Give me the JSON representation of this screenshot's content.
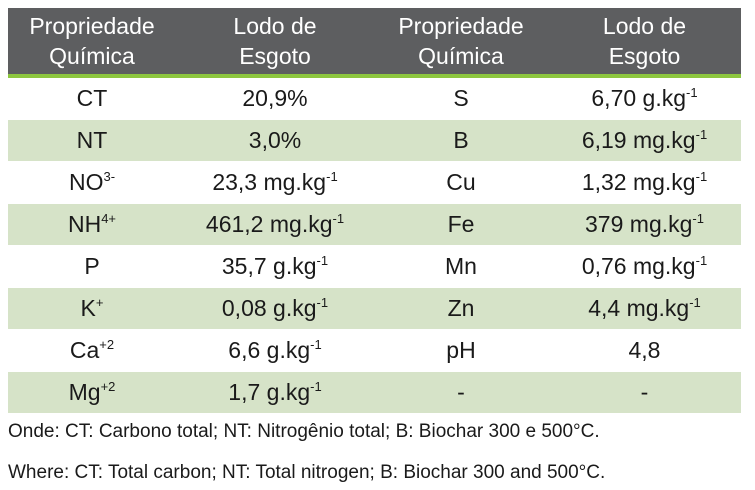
{
  "table": {
    "headers": [
      [
        "Propriedade",
        "Química"
      ],
      [
        "Lodo de",
        "Esgoto"
      ],
      [
        "Propriedade",
        "Química"
      ],
      [
        "Lodo de",
        "Esgoto"
      ]
    ],
    "rows": [
      {
        "p1": "CT",
        "p1_sup": "",
        "v1": "20,9%",
        "v1_sup": "",
        "p2": "S",
        "p2_sup": "",
        "v2": "6,70 g.kg",
        "v2_sup": "-1"
      },
      {
        "p1": "NT",
        "p1_sup": "",
        "v1": "3,0%",
        "v1_sup": "",
        "p2": "B",
        "p2_sup": "",
        "v2": "6,19 mg.kg",
        "v2_sup": "-1"
      },
      {
        "p1": "NO",
        "p1_sup": "3-",
        "v1": "23,3 mg.kg",
        "v1_sup": "-1",
        "p2": "Cu",
        "p2_sup": "",
        "v2": "1,32 mg.kg",
        "v2_sup": "-1"
      },
      {
        "p1": "NH",
        "p1_sup": "4+",
        "v1": "461,2 mg.kg",
        "v1_sup": "-1",
        "p2": "Fe",
        "p2_sup": "",
        "v2": "379 mg.kg",
        "v2_sup": "-1"
      },
      {
        "p1": "P",
        "p1_sup": "",
        "v1": "35,7 g.kg",
        "v1_sup": "-1",
        "p2": "Mn",
        "p2_sup": "",
        "v2": "0,76 mg.kg",
        "v2_sup": "-1"
      },
      {
        "p1": "K",
        "p1_sup": "+",
        "v1": "0,08 g.kg",
        "v1_sup": "-1",
        "p2": "Zn",
        "p2_sup": "",
        "v2": "4,4 mg.kg",
        "v2_sup": "-1"
      },
      {
        "p1": "Ca",
        "p1_sup": "+2",
        "v1": "6,6 g.kg",
        "v1_sup": "-1",
        "p2": "pH",
        "p2_sup": "",
        "v2": "4,8",
        "v2_sup": ""
      },
      {
        "p1": "Mg",
        "p1_sup": "+2",
        "v1": "1,7 g.kg",
        "v1_sup": "-1",
        "p2": "-",
        "p2_sup": "",
        "v2": "-",
        "v2_sup": ""
      }
    ]
  },
  "notes": {
    "pt": "Onde: CT: Carbono total; NT: Nitrogênio total; B: Biochar 300 e 500°C.",
    "en": "Where: CT: Total carbon; NT: Total nitrogen; B: Biochar 300 and 500°C."
  },
  "colors": {
    "header_bg": "#5d5e60",
    "header_rule": "#8dc63f",
    "row_alt_bg": "#d6e3c8"
  }
}
